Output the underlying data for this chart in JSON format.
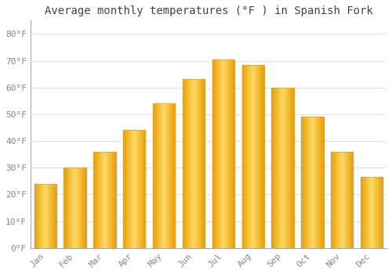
{
  "title": "Average monthly temperatures (°F ) in Spanish Fork",
  "months": [
    "Jan",
    "Feb",
    "Mar",
    "Apr",
    "May",
    "Jun",
    "Jul",
    "Aug",
    "Sep",
    "Oct",
    "Nov",
    "Dec"
  ],
  "values": [
    24,
    30,
    36,
    44,
    54,
    63,
    70.5,
    68.5,
    60,
    49,
    36,
    26.5
  ],
  "bar_color_main": "#FFB300",
  "bar_color_edge": "#E8A000",
  "bar_color_light": "#FFD966",
  "background_color": "#FFFFFF",
  "grid_color": "#E0E0E0",
  "ylim": [
    0,
    85
  ],
  "yticks": [
    0,
    10,
    20,
    30,
    40,
    50,
    60,
    70,
    80
  ],
  "ytick_labels": [
    "0°F",
    "10°F",
    "20°F",
    "30°F",
    "40°F",
    "50°F",
    "60°F",
    "70°F",
    "80°F"
  ],
  "title_fontsize": 10,
  "tick_fontsize": 8,
  "title_color": "#444444",
  "tick_color": "#888888",
  "bar_width": 0.75
}
